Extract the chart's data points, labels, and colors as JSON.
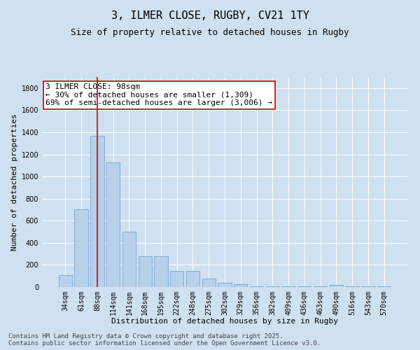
{
  "title1": "3, ILMER CLOSE, RUGBY, CV21 1TY",
  "title2": "Size of property relative to detached houses in Rugby",
  "xlabel": "Distribution of detached houses by size in Rugby",
  "ylabel": "Number of detached properties",
  "categories": [
    "34sqm",
    "61sqm",
    "88sqm",
    "114sqm",
    "141sqm",
    "168sqm",
    "195sqm",
    "222sqm",
    "248sqm",
    "275sqm",
    "302sqm",
    "329sqm",
    "356sqm",
    "382sqm",
    "409sqm",
    "436sqm",
    "463sqm",
    "490sqm",
    "516sqm",
    "543sqm",
    "570sqm"
  ],
  "values": [
    105,
    705,
    1365,
    1130,
    500,
    278,
    278,
    148,
    148,
    75,
    35,
    28,
    8,
    5,
    5,
    5,
    5,
    20,
    5,
    5,
    5
  ],
  "bar_color": "#b8d0ea",
  "bar_edge_color": "#6699cc",
  "vline_x": 2,
  "vline_color": "#cc0000",
  "annotation_text": "3 ILMER CLOSE: 98sqm\n← 30% of detached houses are smaller (1,309)\n69% of semi-detached houses are larger (3,006) →",
  "annotation_box_facecolor": "#ffffff",
  "annotation_box_edgecolor": "#cc0000",
  "ylim": [
    0,
    1900
  ],
  "yticks": [
    0,
    200,
    400,
    600,
    800,
    1000,
    1200,
    1400,
    1600,
    1800
  ],
  "bg_color": "#cfe0f0",
  "plot_bg_color": "#cfe0f0",
  "footer_text": "Contains HM Land Registry data © Crown copyright and database right 2025.\nContains public sector information licensed under the Open Government Licence v3.0.",
  "title1_fontsize": 11,
  "title2_fontsize": 9,
  "annotation_fontsize": 8,
  "axis_fontsize": 8,
  "tick_fontsize": 7,
  "footer_fontsize": 6.5
}
